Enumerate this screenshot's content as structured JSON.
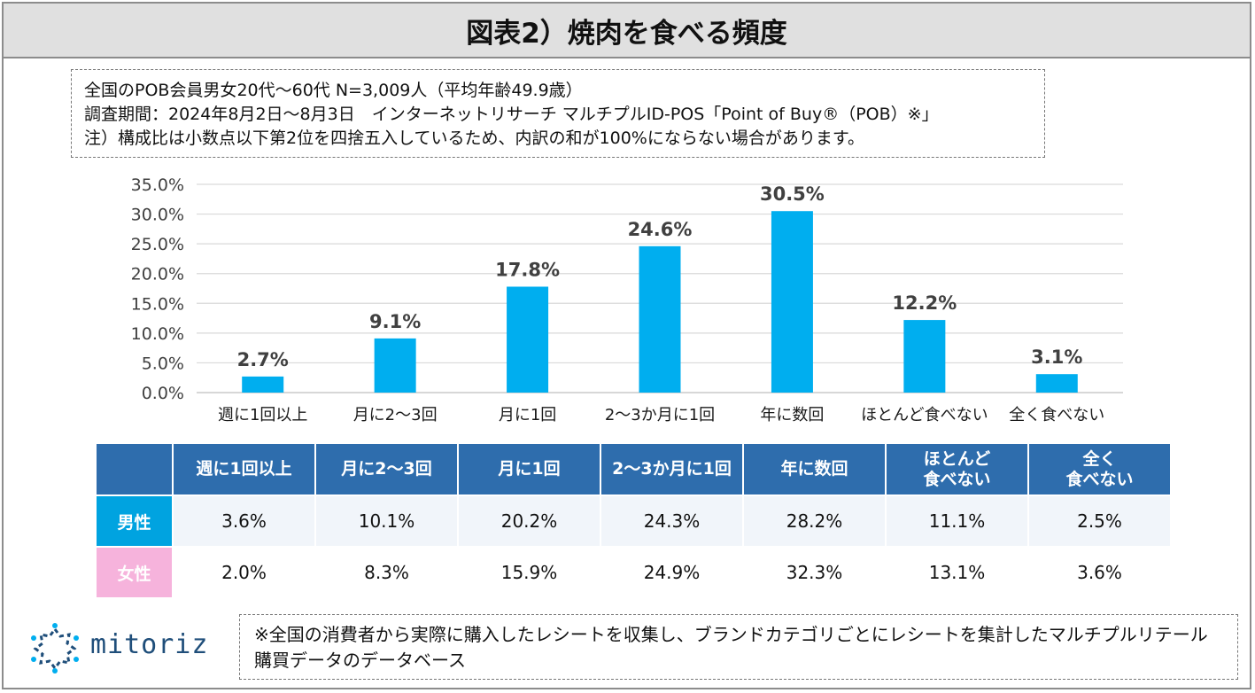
{
  "title": "図表2）焼肉を食べる頻度",
  "notes": [
    "全国のPOB会員男女20代～60代 N=3,009人（平均年齢49.9歳）",
    "調査期間：2024年8月2日～8月3日　インターネットリサーチ マルチプルID-POS「Point of Buy®（POB）※」",
    "注）構成比は小数点以下第2位を四捨五入しているため、内訳の和が100%にならない場合があります。"
  ],
  "chart_data": {
    "type": "bar",
    "categories": [
      "週に1回以上",
      "月に2～3回",
      "月に1回",
      "2～3か月に1回",
      "年に数回",
      "ほとんど食べない",
      "全く食べない"
    ],
    "values": [
      2.7,
      9.1,
      17.8,
      24.6,
      30.5,
      12.2,
      3.1
    ],
    "value_labels": [
      "2.7%",
      "9.1%",
      "17.8%",
      "24.6%",
      "30.5%",
      "12.2%",
      "3.1%"
    ],
    "y_ticks": [
      "35.0%",
      "30.0%",
      "25.0%",
      "20.0%",
      "15.0%",
      "10.0%",
      "5.0%",
      "0.0%"
    ],
    "ylim": [
      0,
      35
    ],
    "title": "",
    "xlabel": "",
    "ylabel": "",
    "grid": true,
    "bar_color": "#00aeef"
  },
  "table": {
    "headers": [
      "週に1回以上",
      "月に2～3回",
      "月に1回",
      "2～3か月に1回",
      "年に数回",
      "ほとんど\n食べない",
      "全く\n食べない"
    ],
    "rows": [
      {
        "label": "男性",
        "color": "#00a3e0",
        "values": [
          "3.6%",
          "10.1%",
          "20.2%",
          "24.3%",
          "28.2%",
          "11.1%",
          "2.5%"
        ]
      },
      {
        "label": "女性",
        "color": "#f6b3dc",
        "values": [
          "2.0%",
          "8.3%",
          "15.9%",
          "24.9%",
          "32.3%",
          "13.1%",
          "3.6%"
        ]
      }
    ]
  },
  "footer_note": "※全国の消費者から実際に購入したレシートを収集し、ブランドカテゴリごとにレシートを集計したマルチプルリテール購買データのデータベース",
  "logo": {
    "text": "mitoriz",
    "icon": "mitoriz-logo-icon",
    "color": "#1f4e7a"
  }
}
